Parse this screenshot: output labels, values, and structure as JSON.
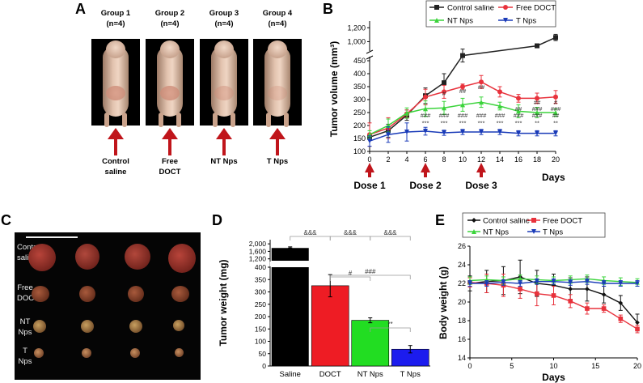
{
  "panel_letters": {
    "a": "A",
    "b": "B",
    "c": "C",
    "d": "D",
    "e": "E"
  },
  "panel_a": {
    "groups": [
      {
        "line1": "Group 1",
        "line2": "(n=4)",
        "bottom1": "Control",
        "bottom2": "saline"
      },
      {
        "line1": "Group 2",
        "line2": "(n=4)",
        "bottom1": "Free",
        "bottom2": "DOCT"
      },
      {
        "line1": "Group 3",
        "line2": "(n=4)",
        "bottom1": "NT Nps",
        "bottom2": ""
      },
      {
        "line1": "Group 4",
        "line2": "(n=4)",
        "bottom1": "T Nps",
        "bottom2": ""
      }
    ],
    "colors": {
      "arrow": "#c0151b"
    }
  },
  "panel_c": {
    "row_labels": [
      {
        "line1": "Control",
        "line2": "saline"
      },
      {
        "line1": "Free",
        "line2": "DOCT"
      },
      {
        "line1": "NT",
        "line2": "Nps"
      },
      {
        "line1": "T",
        "line2": "Nps"
      }
    ]
  },
  "chart_data": [
    {
      "id": "B",
      "type": "line",
      "ylabel": "Tumor volume (mm³)",
      "xlabel": "Days",
      "x": [
        0,
        2,
        4,
        6,
        8,
        10,
        12,
        14,
        16,
        18,
        20
      ],
      "x_ticks": [
        "0",
        "2",
        "4",
        "6",
        "8",
        "10",
        "12",
        "14",
        "16",
        "18",
        "20"
      ],
      "y_ticks_lower": [
        "100",
        "150",
        "200",
        "250",
        "300",
        "350",
        "400",
        "450"
      ],
      "y_ticks_upper": [
        "1,000",
        "1,200"
      ],
      "ylim_lower": [
        100,
        450
      ],
      "ylim_upper": [
        900,
        1250
      ],
      "axis_break": true,
      "series": [
        {
          "name": "Control saline",
          "color": "#222222",
          "marker": "square",
          "points": [
            [
              0,
              155
            ],
            [
              2,
              180
            ],
            [
              4,
              240
            ],
            [
              6,
              315
            ],
            [
              8,
              365
            ],
            [
              10,
              470
            ],
            [
              18,
              940
            ],
            [
              20,
              1060
            ]
          ],
          "errors": [
            10,
            25,
            20,
            30,
            35,
            25,
            20,
            45
          ]
        },
        {
          "name": "Free DOCT",
          "color": "#e8323c",
          "marker": "circle",
          "points": [
            [
              0,
              165
            ],
            [
              2,
              190
            ],
            [
              4,
              245
            ],
            [
              6,
              310
            ],
            [
              8,
              330
            ],
            [
              10,
              350
            ],
            [
              12,
              368
            ],
            [
              14,
              330
            ],
            [
              16,
              305
            ],
            [
              18,
              305
            ],
            [
              20,
              310
            ]
          ],
          "errors": [
            45,
            40,
            15,
            30,
            25,
            10,
            25,
            20,
            15,
            20,
            25
          ]
        },
        {
          "name": "NT Nps",
          "color": "#3bd43b",
          "marker": "triangle-up",
          "points": [
            [
              0,
              165
            ],
            [
              2,
              200
            ],
            [
              4,
              248
            ],
            [
              6,
              265
            ],
            [
              8,
              268
            ],
            [
              10,
              280
            ],
            [
              12,
              290
            ],
            [
              14,
              275
            ],
            [
              16,
              255
            ],
            [
              18,
              250
            ],
            [
              20,
              250
            ]
          ],
          "errors": [
            15,
            25,
            20,
            30,
            25,
            25,
            20,
            15,
            25,
            20,
            15
          ]
        },
        {
          "name": "T Nps",
          "color": "#1a3bb8",
          "marker": "triangle-down",
          "points": [
            [
              0,
              140
            ],
            [
              2,
              165
            ],
            [
              4,
              175
            ],
            [
              6,
              178
            ],
            [
              8,
              172
            ],
            [
              10,
              175
            ],
            [
              12,
              175
            ],
            [
              14,
              175
            ],
            [
              16,
              170
            ],
            [
              18,
              170
            ],
            [
              20,
              170
            ]
          ],
          "errors": [
            20,
            30,
            35,
            15,
            10,
            10,
            10,
            10,
            10,
            10,
            10
          ]
        }
      ],
      "annotations": [
        {
          "x": 8,
          "y": 315,
          "text": "#"
        },
        {
          "x": 10,
          "y": 325,
          "text": "##"
        },
        {
          "x": 12,
          "y": 340,
          "text": "##"
        },
        {
          "x": 18,
          "y": 282,
          "text": "##"
        },
        {
          "x": 20,
          "y": 282,
          "text": "#"
        },
        {
          "x": 6,
          "y": 232,
          "text": "###"
        },
        {
          "x": 8,
          "y": 232,
          "text": "###"
        },
        {
          "x": 10,
          "y": 232,
          "text": "###"
        },
        {
          "x": 12,
          "y": 232,
          "text": "###"
        },
        {
          "x": 14,
          "y": 232,
          "text": "###"
        },
        {
          "x": 16,
          "y": 232,
          "text": "###"
        },
        {
          "x": 18,
          "y": 257,
          "text": "###"
        },
        {
          "x": 20,
          "y": 257,
          "text": "###"
        },
        {
          "x": 16,
          "y": 257,
          "text": "##"
        },
        {
          "x": 18,
          "y": 232,
          "text": "###"
        },
        {
          "x": 20,
          "y": 232,
          "text": "##"
        },
        {
          "x": 6,
          "y": 202,
          "text": "***"
        },
        {
          "x": 8,
          "y": 202,
          "text": "***"
        },
        {
          "x": 10,
          "y": 202,
          "text": "***"
        },
        {
          "x": 12,
          "y": 202,
          "text": "***"
        },
        {
          "x": 14,
          "y": 202,
          "text": "***"
        },
        {
          "x": 16,
          "y": 202,
          "text": "***"
        },
        {
          "x": 18,
          "y": 202,
          "text": "**"
        },
        {
          "x": 20,
          "y": 202,
          "text": "**"
        }
      ],
      "doses": [
        {
          "x": 0,
          "label": "Dose 1"
        },
        {
          "x": 6,
          "label": "Dose 2"
        },
        {
          "x": 12,
          "label": "Dose 3"
        }
      ]
    },
    {
      "id": "D",
      "type": "bar",
      "ylabel": "Tumor weight (mg)",
      "categories": [
        "Saline",
        "DOCT",
        "NT Nps",
        "T Nps"
      ],
      "values": [
        1780,
        325,
        185,
        68
      ],
      "errors": [
        60,
        45,
        10,
        15
      ],
      "colors": [
        "#000000",
        "#ee1c24",
        "#22dd22",
        "#1c1cee"
      ],
      "y_ticks_lower": [
        "0",
        "50",
        "100",
        "150",
        "200",
        "250",
        "300",
        "350",
        "400"
      ],
      "y_ticks_upper": [
        "1,200",
        "1,600",
        "2,000"
      ],
      "ylim_lower": [
        0,
        400
      ],
      "ylim_upper": [
        1100,
        2050
      ],
      "axis_break": true,
      "significance": [
        {
          "from": 0,
          "to": 1,
          "text": "&&&",
          "level": "top"
        },
        {
          "from": 1,
          "to": 2,
          "text": "&&&",
          "level": "top"
        },
        {
          "from": 2,
          "to": 3,
          "text": "&&&",
          "level": "top"
        },
        {
          "from": 1,
          "to": 2,
          "text": "#",
          "level": "mid"
        },
        {
          "from": 1,
          "to": 3,
          "text": "###",
          "level": "mid"
        },
        {
          "from": 2,
          "to": 3,
          "text": "**",
          "level": "low"
        }
      ]
    },
    {
      "id": "E",
      "type": "line",
      "ylabel": "Body weight (g)",
      "xlabel": "Days",
      "x_ticks": [
        "0",
        "5",
        "10",
        "15",
        "20"
      ],
      "y_ticks": [
        "14",
        "16",
        "18",
        "20",
        "22",
        "24",
        "26"
      ],
      "xlim": [
        0,
        20
      ],
      "ylim": [
        14,
        26
      ],
      "series": [
        {
          "name": "Control saline",
          "color": "#111111",
          "marker": "diamond",
          "x": [
            0,
            2,
            4,
            6,
            8,
            10,
            12,
            14,
            16,
            18,
            20
          ],
          "y": [
            22.0,
            22.2,
            22.3,
            22.7,
            22.0,
            21.8,
            21.4,
            21.4,
            20.8,
            19.9,
            17.8
          ],
          "err": [
            0.8,
            1.2,
            1.5,
            1.8,
            1.4,
            1.2,
            1.2,
            1.3,
            0.9,
            0.8,
            0.9
          ]
        },
        {
          "name": "Free DOCT",
          "color": "#e8323c",
          "marker": "square",
          "x": [
            0,
            2,
            4,
            6,
            8,
            10,
            12,
            14,
            16,
            18,
            20
          ],
          "y": [
            22.1,
            22.0,
            21.8,
            21.4,
            20.9,
            20.7,
            20.1,
            19.3,
            19.3,
            18.2,
            17.1
          ],
          "err": [
            0.5,
            1.0,
            1.2,
            1.0,
            1.3,
            1.0,
            0.7,
            0.6,
            0.4,
            0.4,
            0.4
          ]
        },
        {
          "name": "NT Nps",
          "color": "#3bd43b",
          "marker": "triangle-up",
          "x": [
            0,
            2,
            4,
            6,
            8,
            10,
            12,
            14,
            16,
            18,
            20
          ],
          "y": [
            22.3,
            22.4,
            22.3,
            22.5,
            22.4,
            22.3,
            22.4,
            22.5,
            22.3,
            22.2,
            22.1
          ],
          "err": [
            0.4,
            0.4,
            0.4,
            0.4,
            0.4,
            0.4,
            0.4,
            0.4,
            0.4,
            0.4,
            0.4
          ]
        },
        {
          "name": "T Nps",
          "color": "#1a3bb8",
          "marker": "triangle-down",
          "x": [
            0,
            2,
            4,
            6,
            8,
            10,
            12,
            14,
            16,
            18,
            20
          ],
          "y": [
            22.0,
            22.0,
            22.1,
            22.0,
            22.2,
            22.2,
            22.1,
            22.2,
            22.0,
            22.0,
            22.0
          ],
          "err": [
            0.3,
            0.3,
            0.3,
            0.3,
            0.3,
            0.3,
            0.3,
            0.3,
            0.3,
            0.3,
            0.3
          ]
        }
      ]
    }
  ]
}
